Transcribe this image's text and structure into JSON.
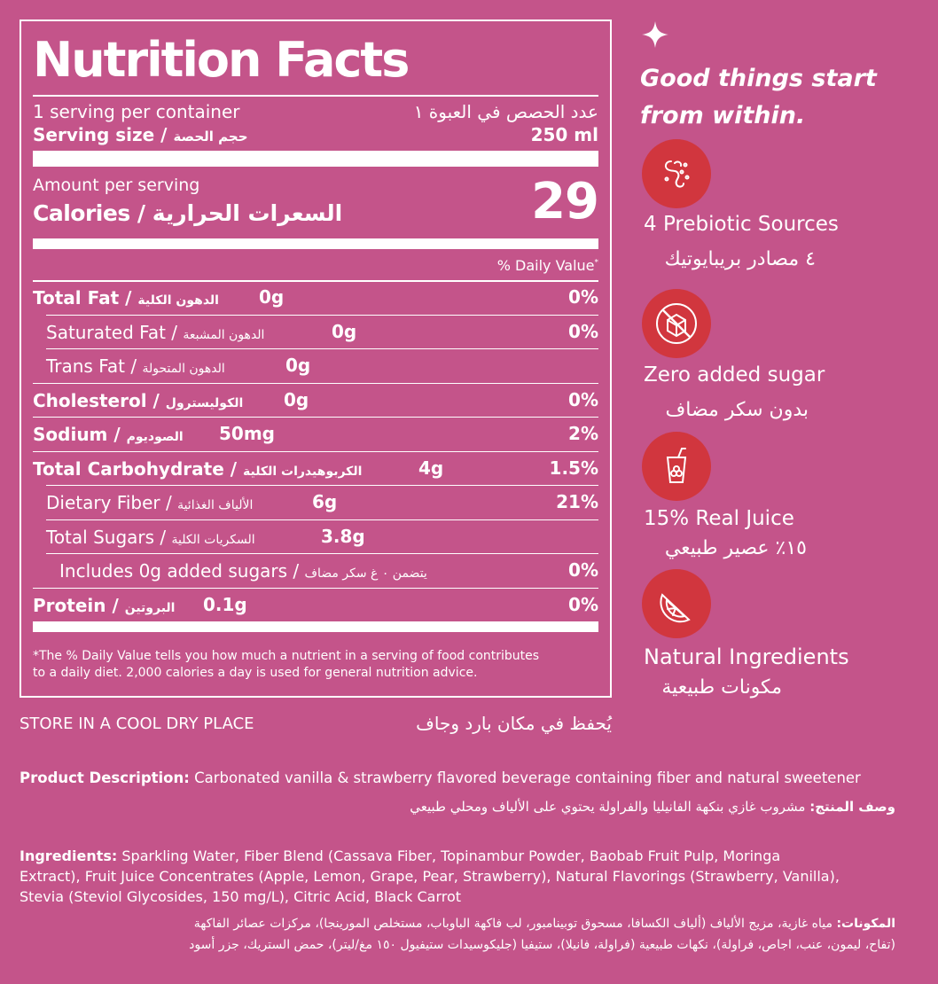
{
  "label": {
    "title": "Nutrition Facts",
    "servings_en": "1 serving per container",
    "servings_ar": "عدد الحصص في العبوة ١",
    "serving_size_label": "Serving size / ",
    "serving_size_ar": "حجم الحصة",
    "serving_size_value": "250 ml",
    "amount_per_serving": "Amount per serving",
    "calories_label": "Calories / ",
    "calories_ar": "السعرات الحرارية",
    "calories_value": "29",
    "dv_header": "% Daily Value",
    "dv_star": "*",
    "rows": [
      {
        "en": "Total Fat / ",
        "ar": "الدهون الكلية",
        "amount": "0g",
        "dv": "0%"
      },
      {
        "en": "Saturated Fat / ",
        "ar": "الدهون المشبعة",
        "amount": "0g",
        "dv": "0%"
      },
      {
        "en": "Trans Fat / ",
        "ar": "الدهون المتحولة",
        "amount": "0g",
        "dv": ""
      },
      {
        "en": "Cholesterol / ",
        "ar": "الكوليسترول",
        "amount": "0g",
        "dv": "0%"
      },
      {
        "en": "Sodium / ",
        "ar": "الصوديوم",
        "amount": "50mg",
        "dv": "2%"
      },
      {
        "en": "Total Carbohydrate / ",
        "ar": "الكربوهيدرات الكلية",
        "amount": "4g",
        "dv": "1.5%"
      },
      {
        "en": "Dietary Fiber / ",
        "ar": "الألياف الغذائية",
        "amount": "6g",
        "dv": "21%"
      },
      {
        "en": "Total Sugars / ",
        "ar": "السكريات الكلية",
        "amount": "3.8g",
        "dv": ""
      },
      {
        "en": "Includes 0g added sugars / ",
        "ar": "يتضمن ٠ غ سكر مضاف",
        "amount": "",
        "dv": "0%"
      },
      {
        "en": "Protein / ",
        "ar": "البروتين",
        "amount": "0.1g",
        "dv": "0%"
      }
    ],
    "footnote_line1": "*The % Daily Value tells you how much a nutrient in a serving of food contributes",
    "footnote_line2": "to a daily diet. 2,000 calories a day is used for general nutrition advice."
  },
  "storage": {
    "en": "STORE IN A COOL DRY PLACE",
    "ar": "يُحفظ في مكان بارد وجاف"
  },
  "sidebar": {
    "tagline_1": "Good things start",
    "tagline_2": "from within.",
    "features": [
      {
        "icon": "gut-icon",
        "en": "4 Prebiotic Sources",
        "ar": "٤ مصادر بريبايوتيك"
      },
      {
        "icon": "no-sugar-icon",
        "en": "Zero added sugar",
        "ar": "بدون سكر مضاف"
      },
      {
        "icon": "juice-icon",
        "en": "15% Real Juice",
        "ar": "١٥٪ عصير طبيعي"
      },
      {
        "icon": "citrus-icon",
        "en": "Natural Ingredients",
        "ar": "مكونات طبيعية"
      }
    ]
  },
  "description": {
    "label_en": "Product Description:",
    "text_en": " Carbonated vanilla & strawberry flavored beverage containing fiber and natural sweetener",
    "label_ar": "وصف المنتج:",
    "text_ar": " مشروب غازي بنكهة الفانيليا والفراولة يحتوي على الألياف ومحلي طبيعي"
  },
  "ingredients": {
    "label_en": "Ingredients:",
    "line1_en": " Sparkling Water, Fiber Blend (Cassava Fiber, Topinambur Powder, Baobab Fruit Pulp, Moringa",
    "line2_en": "Extract), Fruit Juice Concentrates (Apple, Lemon, Grape, Pear, Strawberry), Natural Flavorings (Strawberry, Vanilla),",
    "line3_en": "Stevia (Steviol Glycosides, 150 mg/L), Citric Acid, Black Carrot",
    "label_ar": "المكونات:",
    "line1_ar": " مياه غازية، مزيج الألياف (ألياف الكسافا، مسحوق توبينامبور، لب فاكهة الباوباب، مستخلص المورينجا)، مركزات عصائر الفاكهة",
    "line2_ar": "(تفاح، ليمون، عنب، اجاص، فراولة)، نكهات طبيعية (فراولة، فانيلا)، ستيفيا (جليكوسيدات ستيفيول ١٥٠ مغ/ليتر)، حمض الستريك، جزر أسود"
  },
  "colors": {
    "background": "#c4548a",
    "icon_circle": "#d1363e",
    "text": "#ffffff"
  }
}
